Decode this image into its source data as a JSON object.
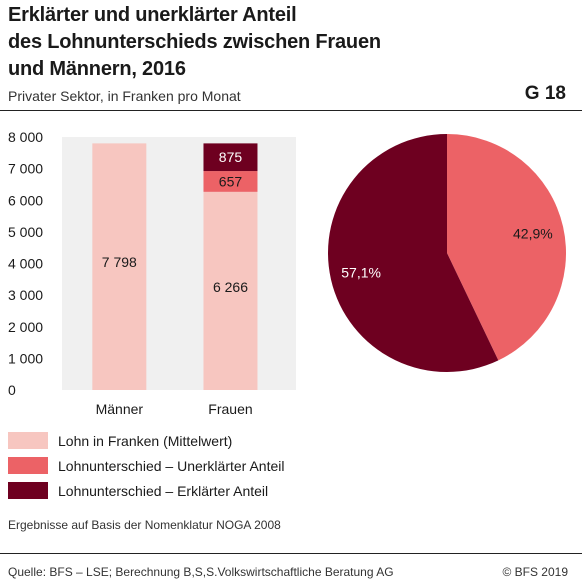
{
  "title_lines": [
    "Erklärter und unerklärter Anteil",
    "des Lohnunterschieds zwischen Frauen",
    "und Männern, 2016"
  ],
  "subtitle": "Privater Sektor, in Franken pro Monat",
  "figure_id": "G 18",
  "colors": {
    "lohn": "#f7c6c0",
    "unerklaert": "#ec6266",
    "erklaert": "#6e0020"
  },
  "chart_data": [
    {
      "type": "bar",
      "stacked": true,
      "categories": [
        "Männer",
        "Frauen"
      ],
      "series": [
        {
          "name": "Lohn in Franken (Mittelwert)",
          "values": [
            7798,
            6266
          ]
        },
        {
          "name": "Lohnunterschied – Unerklärter Anteil",
          "values": [
            0,
            657
          ]
        },
        {
          "name": "Lohnunterschied – Erklärter Anteil",
          "values": [
            0,
            875
          ]
        }
      ],
      "data_labels": [
        [
          "7 798",
          "6 266"
        ],
        [
          null,
          "657"
        ],
        [
          null,
          "875"
        ]
      ],
      "ylim": [
        0,
        8000
      ],
      "yticks": [
        0,
        1000,
        2000,
        3000,
        4000,
        5000,
        6000,
        7000,
        8000
      ],
      "ytick_labels": [
        "0",
        "1 000",
        "2 000",
        "3 000",
        "4 000",
        "5 000",
        "6 000",
        "7 000",
        "8 000"
      ],
      "grid": false
    },
    {
      "type": "pie",
      "slices": [
        {
          "name": "Lohnunterschied – Unerklärter Anteil",
          "value": 42.9,
          "label": "42,9%"
        },
        {
          "name": "Lohnunterschied – Erklärter Anteil",
          "value": 57.1,
          "label": "57,1%"
        }
      ]
    }
  ],
  "legend": [
    {
      "label": "Lohn in Franken (Mittelwert)",
      "color_key": "lohn"
    },
    {
      "label": "Lohnunterschied – Unerklärter Anteil",
      "color_key": "unerklaert"
    },
    {
      "label": "Lohnunterschied – Erklärter Anteil",
      "color_key": "erklaert"
    }
  ],
  "note": "Ergebnisse auf Basis der Nomenklatur NOGA 2008",
  "source": "Quelle: BFS – LSE; Berechnung B,S,S.Volkswirtschaftliche Beratung AG",
  "copyright": "© BFS 2019"
}
